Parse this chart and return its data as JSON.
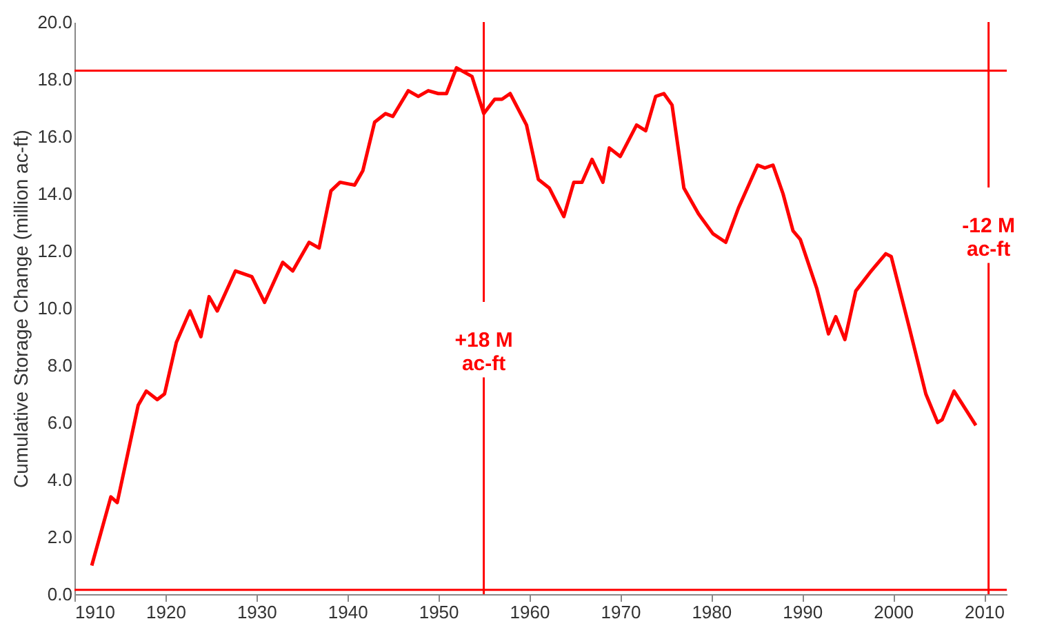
{
  "chart_data": {
    "type": "line",
    "ylabel": "Cumulative Storage Change (million ac-ft)",
    "xlim": [
      1910,
      2012.5
    ],
    "xticks": [
      1910,
      1920,
      1930,
      1940,
      1950,
      1960,
      1970,
      1980,
      1990,
      2000,
      2010
    ],
    "ylim": [
      0,
      20
    ],
    "yticks": [
      {
        "value": 0,
        "label": "0.0"
      },
      {
        "value": 2,
        "label": "2.0"
      },
      {
        "value": 4,
        "label": "4.0"
      },
      {
        "value": 6,
        "label": "6.0"
      },
      {
        "value": 8,
        "label": "8.0"
      },
      {
        "value": 10,
        "label": "10.0"
      },
      {
        "value": 12,
        "label": "12.0"
      },
      {
        "value": 14,
        "label": "14.0"
      },
      {
        "value": 16,
        "label": "16.0"
      },
      {
        "value": 18,
        "label": "18.0"
      },
      {
        "value": 20,
        "label": "20.0"
      }
    ],
    "grid": false,
    "marker": "none",
    "line_style": "solid",
    "series": [
      {
        "color": "#ff0000",
        "x": [
          1911.9,
          1914.0,
          1914.7,
          1917.0,
          1917.9,
          1919.1,
          1919.9,
          1921.2,
          1922.7,
          1923.9,
          1924.8,
          1925.7,
          1927.7,
          1929.5,
          1930.9,
          1932.9,
          1934.0,
          1935.8,
          1936.9,
          1938.2,
          1939.2,
          1940.8,
          1941.7,
          1943.0,
          1944.2,
          1945.0,
          1946.7,
          1947.8,
          1948.9,
          1950.0,
          1950.9,
          1952.0,
          1953.7,
          1955.0,
          1956.2,
          1957.0,
          1957.9,
          1959.7,
          1961.0,
          1962.2,
          1963.8,
          1964.9,
          1965.8,
          1966.9,
          1968.1,
          1968.8,
          1970.0,
          1971.8,
          1972.8,
          1973.9,
          1974.8,
          1975.7,
          1977.0,
          1978.6,
          1980.2,
          1981.6,
          1983.0,
          1985.1,
          1985.9,
          1986.8,
          1987.9,
          1989.0,
          1989.8,
          1991.6,
          1992.9,
          1993.7,
          1994.7,
          1995.9,
          1997.6,
          1999.2,
          1999.8,
          2001.8,
          2003.6,
          2004.9,
          2005.4,
          2006.7,
          2007.5,
          2009.1
        ],
        "values": [
          1.0,
          3.4,
          3.2,
          6.6,
          7.1,
          6.8,
          7.0,
          8.8,
          9.9,
          9.0,
          10.4,
          9.9,
          11.3,
          11.1,
          10.2,
          11.6,
          11.3,
          12.3,
          12.1,
          14.1,
          14.4,
          14.3,
          14.8,
          16.5,
          16.8,
          16.7,
          17.6,
          17.4,
          17.6,
          17.5,
          17.5,
          18.4,
          18.1,
          16.8,
          17.3,
          17.3,
          17.5,
          16.4,
          14.5,
          14.2,
          13.2,
          14.4,
          14.4,
          15.2,
          14.4,
          15.6,
          15.3,
          16.4,
          16.2,
          17.4,
          17.5,
          17.1,
          14.2,
          13.3,
          12.6,
          12.3,
          13.5,
          15.0,
          14.9,
          15.0,
          14.0,
          12.7,
          12.4,
          10.7,
          9.1,
          9.7,
          8.9,
          10.6,
          11.3,
          11.9,
          11.8,
          9.3,
          7.0,
          6.0,
          6.1,
          7.1,
          6.7,
          5.9
        ]
      }
    ],
    "ref_lines": [
      {
        "axis": "y",
        "value": 18.3,
        "color": "#ff0000"
      },
      {
        "axis": "y",
        "value": 0.15,
        "color": "#ff0000"
      },
      {
        "axis": "x",
        "value": 1955,
        "color": "#ff0000"
      },
      {
        "axis": "x",
        "value": 2010.5,
        "color": "#ff0000"
      }
    ],
    "annotations": [
      {
        "text": "+18 M\nac-ft",
        "x": 1955,
        "y": 8.9
      },
      {
        "text": "-12 M\nac-ft",
        "x": 2010.5,
        "y": 12.9
      }
    ]
  }
}
